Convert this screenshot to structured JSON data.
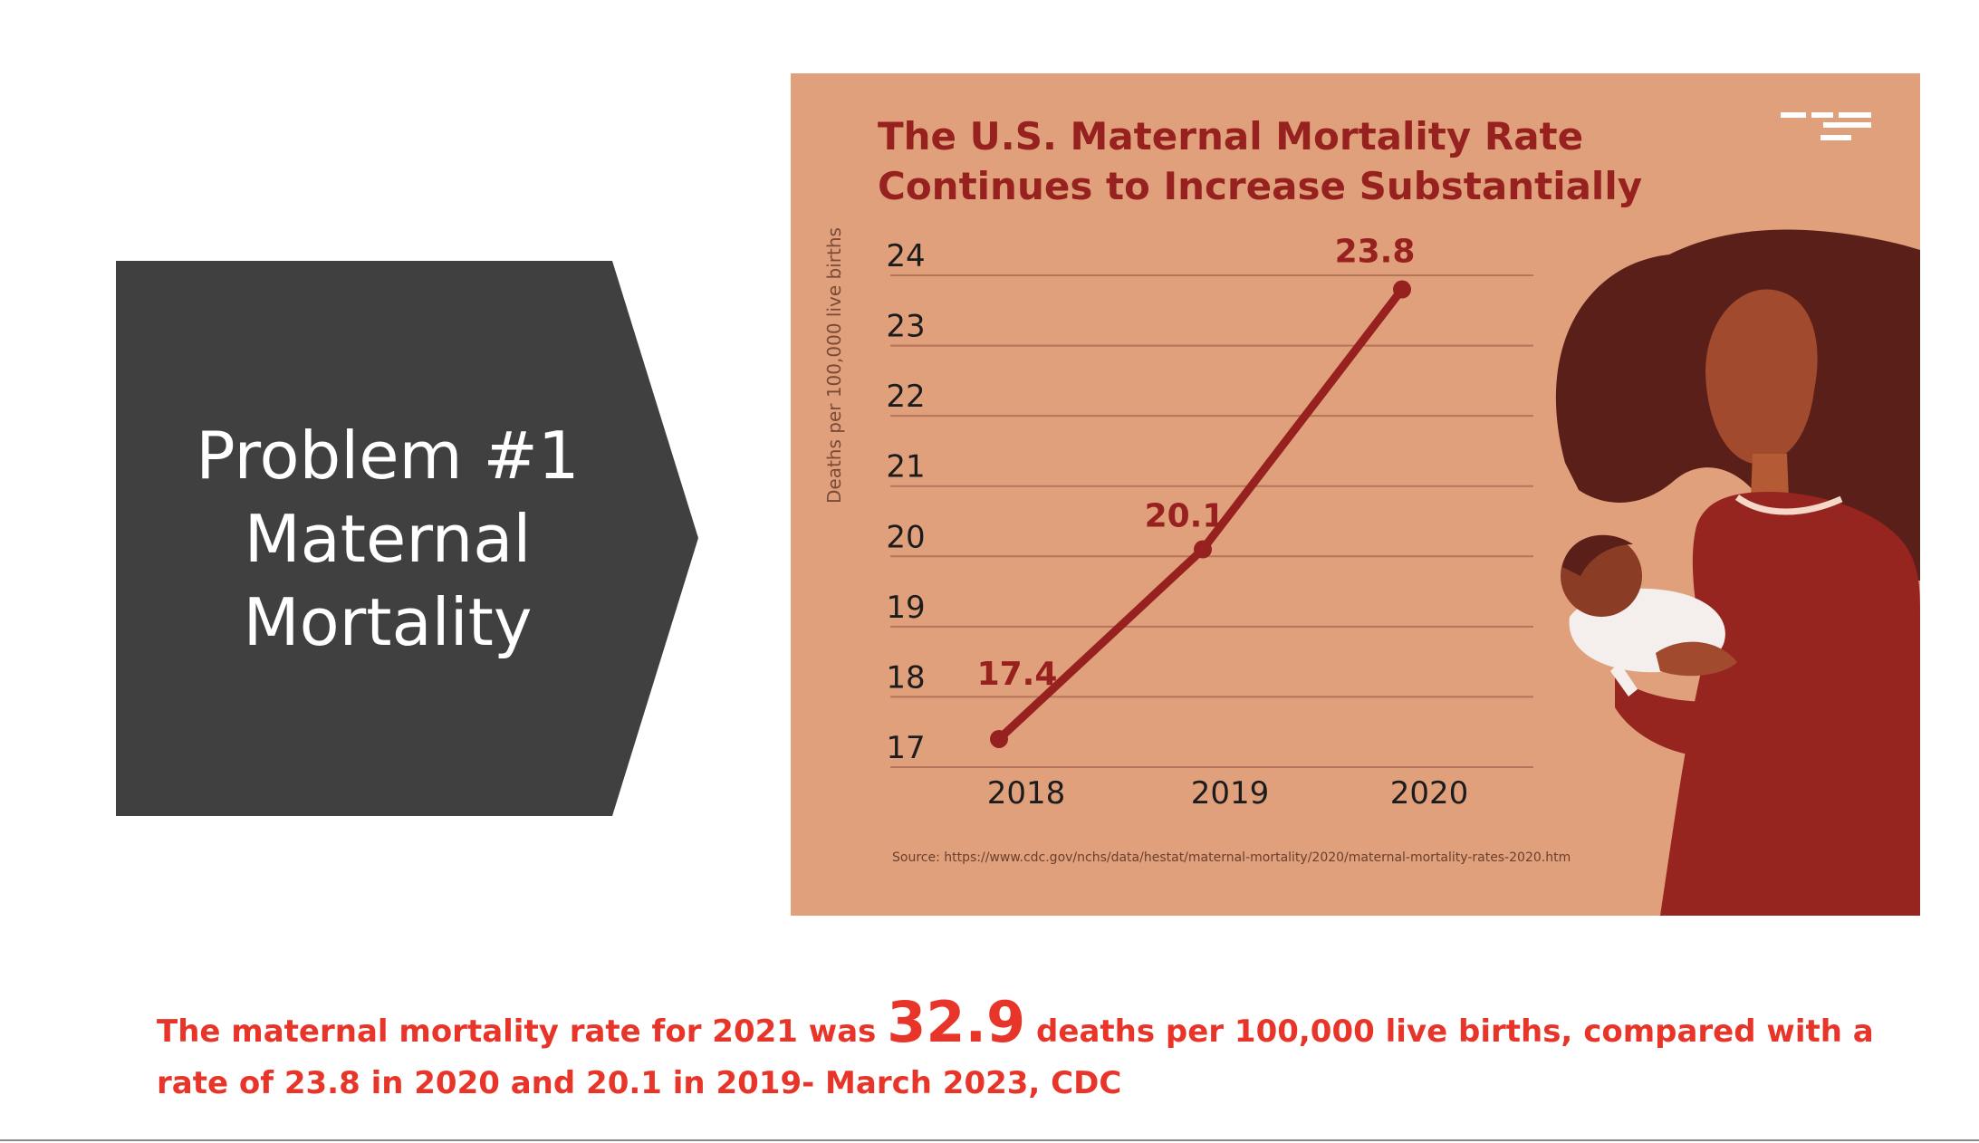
{
  "slide": {
    "problem": {
      "line1": "Problem #1",
      "line2": "Maternal",
      "line3": "Mortality"
    },
    "caption": {
      "part1": "The maternal mortality rate for 2021 was ",
      "highlight": "32.9",
      "part2": " deaths per 100,000 live births, compared with a rate of 23.8 in 2020 and 20.1 in 2019- March 2023, CDC"
    },
    "colors": {
      "arrow": "#404040",
      "panel": "#e0a07c",
      "line": "#97211e",
      "caption": "#e8352a"
    },
    "illustration": "mother-holding-baby-illustration",
    "logo": "brand-logo-icon"
  },
  "chart_data": {
    "type": "line",
    "title": [
      "The U.S. Maternal Mortality Rate",
      "Continues to Increase Substantially"
    ],
    "xlabel": "",
    "ylabel": "Deaths per 100,000 live births",
    "categories": [
      "2018",
      "2019",
      "2020"
    ],
    "series": [
      {
        "values": [
          17.4,
          20.1,
          23.8
        ],
        "labels": [
          "17.4",
          "20.1",
          "23.8"
        ]
      }
    ],
    "yticks": [
      "17",
      "18",
      "19",
      "20",
      "21",
      "22",
      "23",
      "24"
    ],
    "ylim": [
      17,
      24
    ],
    "grid": true,
    "source": "Source: https://www.cdc.gov/nchs/data/hestat/maternal-mortality/2020/maternal-mortality-rates-2020.htm"
  }
}
